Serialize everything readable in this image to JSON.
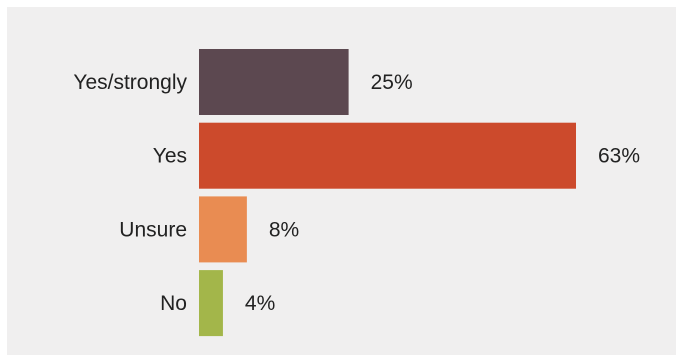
{
  "chart_data": {
    "type": "bar",
    "orientation": "horizontal",
    "categories": [
      "Yes/strongly",
      "Yes",
      "Unsure",
      "No"
    ],
    "values": [
      25,
      63,
      8,
      4
    ],
    "value_labels": [
      "25%",
      "63%",
      "8%",
      "4%"
    ],
    "colors": [
      "#5c4850",
      "#cc4a2c",
      "#e98c52",
      "#a3b64a"
    ],
    "xlim": [
      0,
      63
    ],
    "background": "#f0efef",
    "grid": false,
    "legend": "none"
  }
}
